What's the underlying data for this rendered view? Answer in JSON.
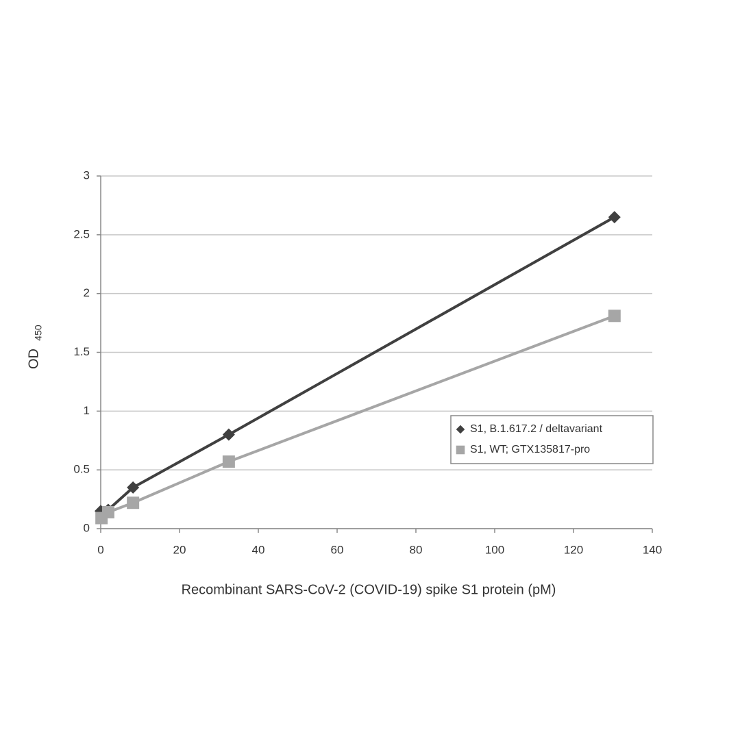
{
  "chart_data": {
    "type": "line",
    "xlabel": "Recombinant SARS-CoV-2 (COVID-19) spike S1 protein (pM)",
    "ylabel": "OD",
    "ylabel_subscript": "450",
    "xlim": [
      0,
      140
    ],
    "xticks": [
      0,
      20,
      40,
      60,
      80,
      100,
      120,
      140
    ],
    "ylim": [
      0,
      3
    ],
    "yticks": [
      0,
      0.5,
      1,
      1.5,
      2,
      2.5,
      3
    ],
    "grid": true,
    "legend": "right",
    "series": [
      {
        "name": "S1, B.1.617.2 / deltavariant",
        "color": "#404040",
        "marker": "diamond",
        "x": [
          0,
          1.9,
          8.2,
          32.5,
          130.4
        ],
        "values": [
          0.15,
          0.16,
          0.35,
          0.8,
          2.65
        ]
      },
      {
        "name": "S1, WT; GTX135817-pro",
        "color": "#a6a6a6",
        "marker": "square",
        "x": [
          0.2,
          1.9,
          8.2,
          32.5,
          130.4
        ],
        "values": [
          0.09,
          0.14,
          0.22,
          0.57,
          1.81
        ]
      }
    ]
  }
}
